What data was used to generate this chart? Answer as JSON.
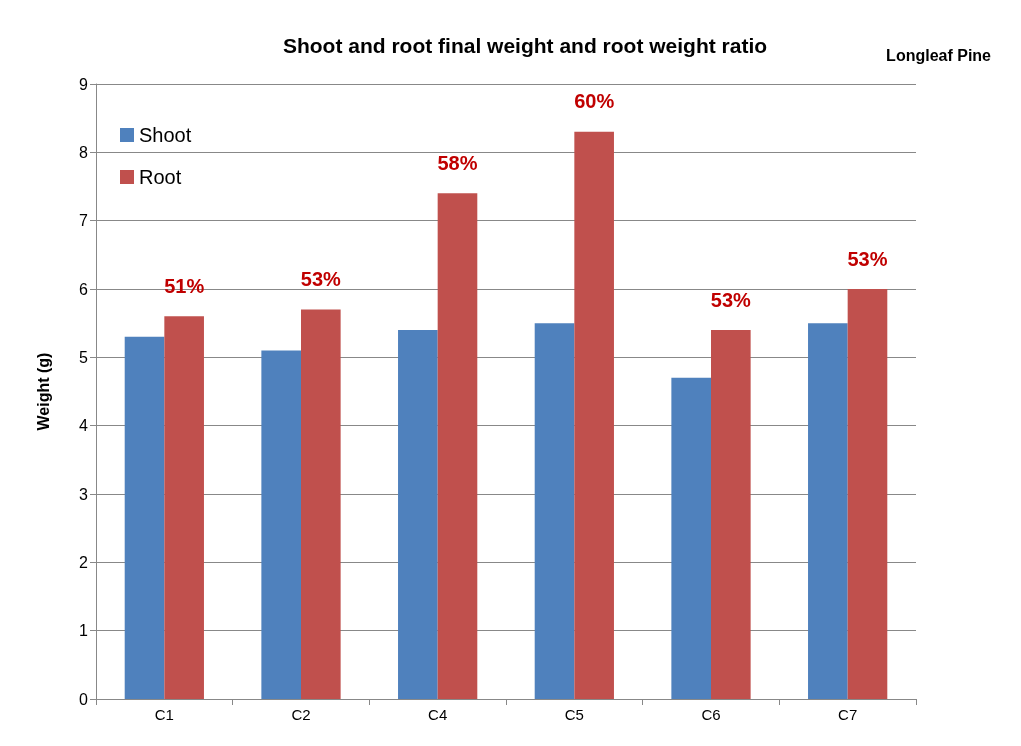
{
  "chart_data": {
    "type": "bar",
    "title": "Shoot and root final weight and root weight ratio",
    "subtitle": "Longleaf Pine",
    "ylabel": "Weight (g)",
    "categories": [
      "C1",
      "C2",
      "C4",
      "C5",
      "C6",
      "C7"
    ],
    "series": [
      {
        "name": "Shoot",
        "color": "#4f81bd",
        "values": [
          5.3,
          5.1,
          5.4,
          5.5,
          4.7,
          5.5
        ]
      },
      {
        "name": "Root",
        "color": "#c0504d",
        "values": [
          5.6,
          5.7,
          7.4,
          8.3,
          5.4,
          6.0
        ]
      }
    ],
    "annotations": [
      {
        "text": "51%",
        "x": "C1",
        "y": 5.6
      },
      {
        "text": "53%",
        "x": "C2",
        "y": 5.7
      },
      {
        "text": "58%",
        "x": "C4",
        "y": 7.4
      },
      {
        "text": "60%",
        "x": "C5",
        "y": 8.3
      },
      {
        "text": "53%",
        "x": "C6",
        "y": 5.4
      },
      {
        "text": "53%",
        "x": "C7",
        "y": 6.0
      }
    ],
    "ylim": [
      0,
      9
    ],
    "yticks": [
      0,
      1,
      2,
      3,
      4,
      5,
      6,
      7,
      8,
      9
    ],
    "grid": "y",
    "legend": "top left"
  }
}
